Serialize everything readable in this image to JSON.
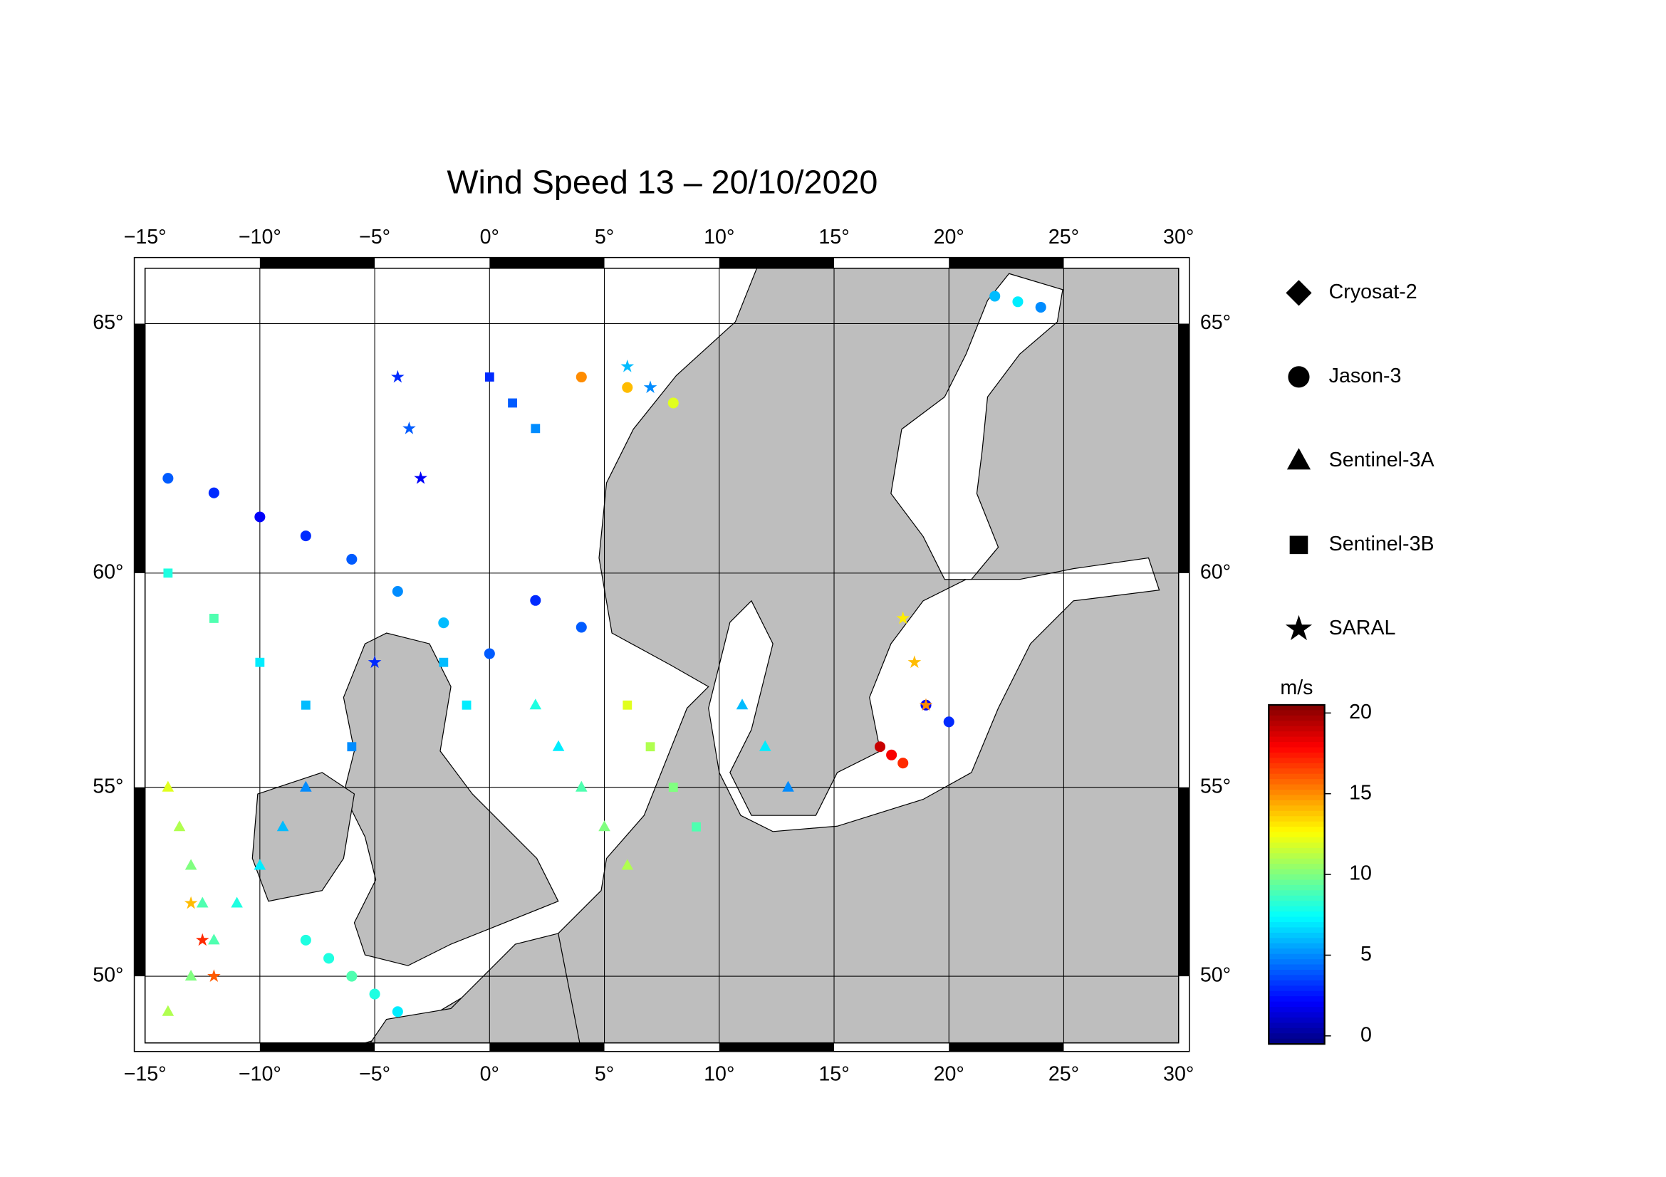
{
  "chart_data": {
    "type": "scatter",
    "title": "Wind Speed 13 – 20/10/2020",
    "xlim": [
      -15,
      30
    ],
    "ylim": [
      48.1,
      66.0
    ],
    "projection": "mercator",
    "grid": true,
    "xticks": [
      {
        "value": -15,
        "label": "−15°"
      },
      {
        "value": -10,
        "label": "−10°"
      },
      {
        "value": -5,
        "label": "−5°"
      },
      {
        "value": 0,
        "label": "0°"
      },
      {
        "value": 5,
        "label": "5°"
      },
      {
        "value": 10,
        "label": "10°"
      },
      {
        "value": 15,
        "label": "15°"
      },
      {
        "value": 20,
        "label": "20°"
      },
      {
        "value": 25,
        "label": "25°"
      },
      {
        "value": 30,
        "label": "30°"
      }
    ],
    "yticks": [
      {
        "value": 50,
        "label": "50°"
      },
      {
        "value": 55,
        "label": "55°"
      },
      {
        "value": 60,
        "label": "60°"
      },
      {
        "value": 65,
        "label": "65°"
      }
    ],
    "colorbar": {
      "label": "m/s",
      "lim": [
        -0.5,
        20.5
      ],
      "ticks": [
        0,
        5,
        10,
        15,
        20
      ],
      "colormap": "jet"
    },
    "series": [
      {
        "name": "Cryosat-2",
        "marker": "diamond",
        "x": [],
        "y": [],
        "values": []
      },
      {
        "name": "Jason-3",
        "marker": "circle",
        "x": [
          -14,
          -12,
          -10,
          -8,
          -6,
          -4,
          -2,
          0,
          2,
          4,
          -8,
          -7,
          -6,
          -5,
          -4,
          17,
          17.5,
          18,
          19,
          20,
          22,
          23,
          24,
          4,
          6,
          8
        ],
        "y": [
          62,
          61.7,
          61.2,
          60.8,
          60.3,
          59.6,
          58.9,
          58.2,
          59.4,
          58.8,
          51,
          50.5,
          50,
          49.5,
          49,
          56,
          55.8,
          55.6,
          57,
          56.6,
          65.5,
          65.4,
          65.3,
          64,
          63.8,
          63.5
        ],
        "values": [
          4,
          3,
          2,
          3,
          4,
          5,
          6,
          4,
          3,
          4,
          8,
          8,
          9,
          8,
          7,
          19,
          18,
          17,
          2,
          3,
          6,
          7,
          5,
          15,
          14,
          12
        ]
      },
      {
        "name": "Sentinel-3A",
        "marker": "triangle",
        "x": [
          -14,
          -13,
          -12,
          -11,
          -10,
          -9,
          -8,
          2,
          3,
          4,
          5,
          6,
          -14,
          -13.5,
          -13,
          -12.5,
          11,
          12,
          13
        ],
        "y": [
          49,
          50,
          51,
          52,
          53,
          54,
          55,
          57,
          56,
          55,
          54,
          53,
          55,
          54,
          53,
          52,
          57,
          56,
          55
        ],
        "values": [
          11,
          10,
          9,
          8,
          7,
          6,
          5,
          8,
          7,
          9,
          10,
          11,
          12,
          11,
          10,
          9,
          6,
          7,
          5
        ]
      },
      {
        "name": "Sentinel-3B",
        "marker": "square",
        "x": [
          -14,
          -12,
          -10,
          -8,
          -6,
          6,
          7,
          8,
          9,
          0,
          1,
          2,
          -2,
          -1
        ],
        "y": [
          60,
          59,
          58,
          57,
          56,
          57,
          56,
          55,
          54,
          64,
          63.5,
          63,
          58,
          57
        ],
        "values": [
          8,
          9,
          7,
          6,
          5,
          12,
          11,
          10,
          9,
          3,
          4,
          5,
          6,
          7
        ]
      },
      {
        "name": "SARAL",
        "marker": "star",
        "x": [
          -12.5,
          -12,
          -13,
          -4,
          -3.5,
          -3,
          -5,
          18,
          18.5,
          19,
          6,
          7
        ],
        "y": [
          51,
          50,
          52,
          64,
          63,
          62,
          58,
          59,
          58,
          57,
          64.2,
          63.8
        ],
        "values": [
          17,
          16,
          14,
          3,
          4,
          2,
          3,
          13,
          14,
          15,
          6,
          5
        ]
      }
    ]
  }
}
